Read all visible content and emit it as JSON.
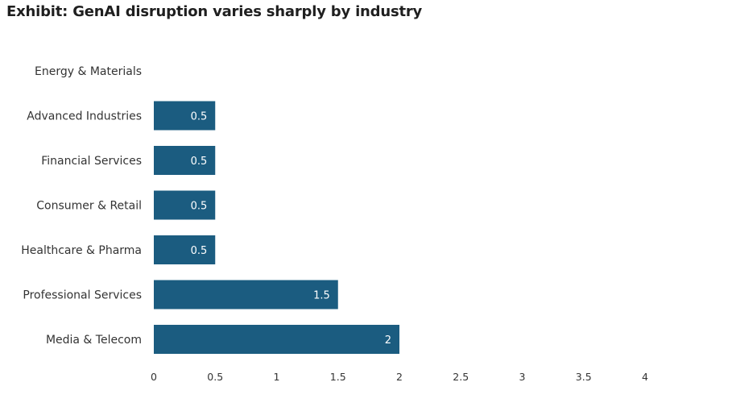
{
  "title": "Exhibit: GenAI disruption varies sharply by industry",
  "colors": {
    "bar": "#1b5c80",
    "text": "#333333",
    "background": "#ffffff"
  },
  "chart_data": {
    "type": "bar",
    "orientation": "horizontal",
    "title": "Exhibit: GenAI disruption varies sharply by industry",
    "xlabel": "",
    "ylabel": "",
    "categories": [
      "Energy & Materials",
      "Advanced Industries",
      "Financial Services",
      "Consumer & Retail",
      "Healthcare & Pharma",
      "Professional Services",
      "Media & Telecom"
    ],
    "values": [
      0,
      0.5,
      0.5,
      0.5,
      0.5,
      1.5,
      2
    ],
    "data_labels": [
      "",
      "0.5",
      "0.5",
      "0.5",
      "0.5",
      "1.5",
      "2"
    ],
    "xlim": [
      0,
      4
    ],
    "x_ticks": [
      "0",
      "0.5",
      "1",
      "1.5",
      "2",
      "2.5",
      "3",
      "3.5",
      "4"
    ],
    "grid": false,
    "legend": "none"
  }
}
